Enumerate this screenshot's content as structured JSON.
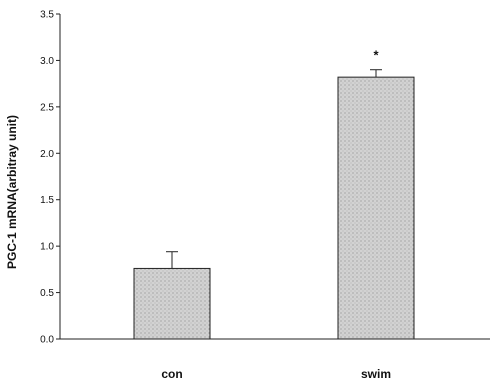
{
  "chart_data": {
    "type": "bar",
    "categories": [
      "con",
      "swim"
    ],
    "values": [
      0.76,
      2.82
    ],
    "errors": [
      0.18,
      0.08
    ],
    "annotations": [
      "",
      "*"
    ],
    "ylabel": "PGC-1 mRNA(arbitray unit)",
    "xlabel": "",
    "ylim": [
      0,
      3.5
    ],
    "yticks": [
      "0.0",
      "0.5",
      "1.0",
      "1.5",
      "2.0",
      "2.5",
      "3.0",
      "3.5"
    ],
    "grid": false,
    "bar_fill": "#cfcfcf",
    "bar_stroke": "#222222"
  }
}
